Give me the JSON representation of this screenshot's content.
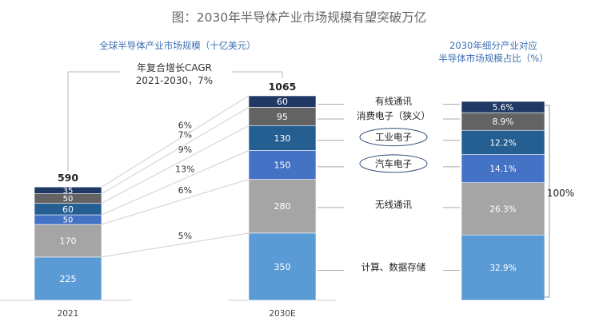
{
  "chart_data": {
    "type": "bar",
    "title": "图：2030年半导体产业市场规模有望突破万亿",
    "left_subtitle": "全球半导体产业市场规模（十亿美元）",
    "right_subtitle_lines": [
      "2030年细分产业对应",
      "半导体市场规模占比（%）"
    ],
    "cagr_label_lines": [
      "年复合增长CAGR",
      "2021-2030，7%"
    ],
    "categories": [
      "2021",
      "2030E"
    ],
    "totals": [
      590,
      1065
    ],
    "series": [
      {
        "name": "计算、数据存储",
        "values": [
          225,
          350
        ],
        "cagr": "5%",
        "share_2030": "32.9%",
        "color": "#5b9bd5"
      },
      {
        "name": "无线通讯",
        "values": [
          170,
          280
        ],
        "cagr": "6%",
        "share_2030": "26.3%",
        "color": "#a5a5a5"
      },
      {
        "name": "汽车电子",
        "values": [
          50,
          150
        ],
        "cagr": "13%",
        "share_2030": "14.1%",
        "color": "#4472c4",
        "highlight": true
      },
      {
        "name": "工业电子",
        "values": [
          60,
          130
        ],
        "cagr": "9%",
        "share_2030": "12.2%",
        "color": "#255e91",
        "highlight": true
      },
      {
        "name": "消费电子（狭义）",
        "values": [
          50,
          95
        ],
        "cagr": "7%",
        "share_2030": "8.9%",
        "color": "#636363"
      },
      {
        "name": "有线通讯",
        "values": [
          35,
          60
        ],
        "cagr": "6%",
        "share_2030": "5.6%",
        "color": "#1f3864"
      }
    ],
    "share_total_label": "100%",
    "ylim": [
      0,
      1065
    ]
  }
}
